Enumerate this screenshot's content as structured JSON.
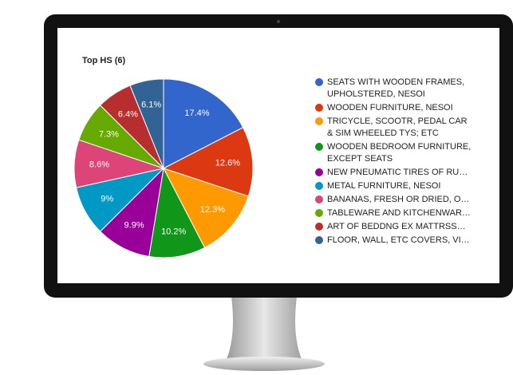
{
  "chart_data": {
    "type": "pie",
    "title": "Top HS (6)",
    "categories": [
      "SEATS WITH WOODEN FRAMES, UPHOLSTERED, NESOI",
      "WOODEN FURNITURE, NESOI",
      "TRICYCLE, SCOOTR, PEDAL CAR & SIM WHEELED TYS; ETC",
      "WOODEN BEDROOM FURNITURE, EXCEPT SEATS",
      "NEW PNEUMATIC TIRES OF RU…",
      "METAL FURNITURE, NESOI",
      "BANANAS, FRESH OR DRIED, O…",
      "TABLEWARE AND KITCHENWAR…",
      "ART OF BEDDNG EX MATTRSS…",
      "FLOOR, WALL, ETC COVERS, VI…"
    ],
    "values": [
      17.4,
      12.6,
      12.3,
      10.2,
      9.9,
      9,
      8.6,
      7.3,
      6.4,
      6.1
    ],
    "value_labels": [
      "17.4%",
      "12.6%",
      "12.3%",
      "10.2%",
      "9.9%",
      "9%",
      "8.6%",
      "7.3%",
      "6.4%",
      "6.1%"
    ],
    "colors": [
      "#3366cc",
      "#dc3912",
      "#ff9900",
      "#109618",
      "#990099",
      "#0099c6",
      "#dd4477",
      "#66aa00",
      "#b82e2e",
      "#316395"
    ],
    "legend": "right"
  }
}
